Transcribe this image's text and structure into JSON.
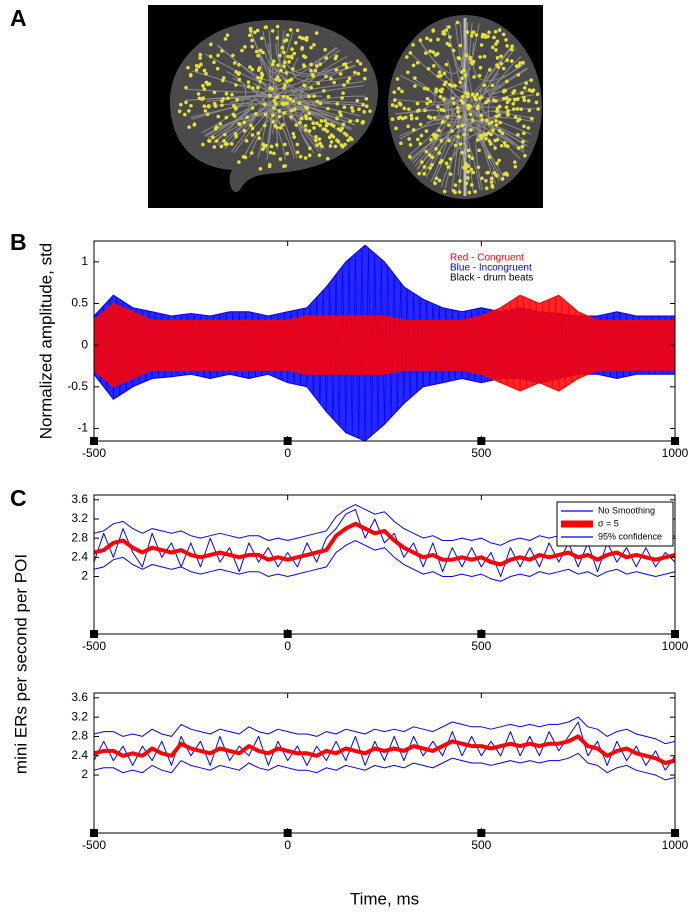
{
  "figure": {
    "panel_a": "A",
    "panel_b": "B",
    "panel_c": "C"
  },
  "chart_data": [
    {
      "type": "band",
      "ylabel": "Normalized amplitude, std",
      "xlim": [
        -500,
        1000
      ],
      "xticks": [
        -500,
        0,
        500,
        1000
      ],
      "ylim": [
        -1.15,
        1.25
      ],
      "yticks": [
        -1,
        -0.5,
        0,
        0.5,
        1
      ],
      "legend": "upper right",
      "x": [
        -500,
        -450,
        -400,
        -350,
        -300,
        -250,
        -200,
        -150,
        -100,
        -50,
        0,
        50,
        100,
        150,
        200,
        250,
        300,
        350,
        400,
        450,
        500,
        550,
        600,
        650,
        700,
        750,
        800,
        850,
        900,
        950,
        1000
      ],
      "series": [
        {
          "name": "Red - Congruent",
          "color": "#ff0000",
          "values": [
            0.3,
            0.5,
            0.4,
            0.3,
            0.3,
            0.3,
            0.3,
            0.3,
            0.3,
            0.3,
            0.3,
            0.35,
            0.35,
            0.35,
            0.35,
            0.35,
            0.3,
            0.3,
            0.3,
            0.3,
            0.35,
            0.45,
            0.6,
            0.5,
            0.6,
            0.4,
            0.3,
            0.3,
            0.3,
            0.3,
            0.3
          ],
          "lower": [
            -0.3,
            -0.5,
            -0.4,
            -0.3,
            -0.3,
            -0.3,
            -0.3,
            -0.3,
            -0.3,
            -0.3,
            -0.3,
            -0.35,
            -0.35,
            -0.35,
            -0.35,
            -0.35,
            -0.3,
            -0.3,
            -0.3,
            -0.3,
            -0.35,
            -0.45,
            -0.55,
            -0.45,
            -0.55,
            -0.4,
            -0.3,
            -0.3,
            -0.3,
            -0.3,
            -0.3
          ]
        },
        {
          "name": "Blue - Incongruent",
          "color": "#0000ff",
          "values": [
            0.35,
            0.6,
            0.45,
            0.4,
            0.35,
            0.38,
            0.35,
            0.4,
            0.4,
            0.35,
            0.4,
            0.45,
            0.7,
            1.0,
            1.2,
            1.0,
            0.7,
            0.55,
            0.45,
            0.4,
            0.45,
            0.4,
            0.45,
            0.4,
            0.38,
            0.35,
            0.35,
            0.4,
            0.35,
            0.35,
            0.35
          ],
          "lower": [
            -0.35,
            -0.65,
            -0.5,
            -0.4,
            -0.38,
            -0.35,
            -0.4,
            -0.35,
            -0.4,
            -0.35,
            -0.45,
            -0.5,
            -0.8,
            -1.05,
            -1.15,
            -0.95,
            -0.7,
            -0.5,
            -0.45,
            -0.4,
            -0.45,
            -0.4,
            -0.4,
            -0.45,
            -0.4,
            -0.35,
            -0.35,
            -0.4,
            -0.35,
            -0.35,
            -0.35
          ]
        }
      ],
      "drum_beats": {
        "name": "Black - drum beats",
        "color": "#000000",
        "x": [
          -500,
          0,
          500,
          1000
        ]
      }
    },
    {
      "type": "line",
      "ylabel": "mini ERs per second per POI",
      "xlim": [
        -500,
        1000
      ],
      "xticks": [
        -500,
        0,
        500,
        1000
      ],
      "ylim": [
        0.8,
        3.7
      ],
      "yticks": [
        2,
        2.4,
        2.8,
        3.2,
        3.6
      ],
      "legend": "upper right",
      "x": [
        -500,
        -475,
        -450,
        -425,
        -400,
        -375,
        -350,
        -325,
        -300,
        -275,
        -250,
        -225,
        -200,
        -175,
        -150,
        -125,
        -100,
        -75,
        -50,
        -25,
        0,
        25,
        50,
        75,
        100,
        125,
        150,
        175,
        200,
        225,
        250,
        275,
        300,
        325,
        350,
        375,
        400,
        425,
        450,
        475,
        500,
        525,
        550,
        575,
        600,
        625,
        650,
        675,
        700,
        725,
        750,
        775,
        800,
        825,
        850,
        875,
        900,
        925,
        950,
        975,
        1000
      ],
      "series": [
        {
          "name": "No Smoothing",
          "color": "#0000ff",
          "values": [
            2.3,
            2.9,
            2.4,
            3.0,
            2.5,
            2.2,
            2.9,
            2.4,
            2.7,
            2.2,
            2.7,
            2.2,
            2.8,
            2.3,
            2.6,
            2.1,
            2.7,
            2.3,
            2.6,
            2.2,
            2.5,
            2.2,
            2.7,
            2.3,
            2.8,
            3.0,
            3.3,
            3.4,
            2.8,
            3.2,
            2.7,
            2.9,
            2.4,
            2.7,
            2.2,
            2.7,
            2.1,
            2.6,
            2.2,
            2.6,
            2.2,
            2.5,
            2.0,
            2.6,
            2.2,
            2.6,
            2.2,
            2.7,
            2.3,
            2.7,
            2.2,
            2.7,
            2.1,
            2.7,
            2.3,
            2.6,
            2.2,
            2.6,
            2.2,
            2.5,
            2.3
          ]
        },
        {
          "name": "σ = 5",
          "color": "#ff0000",
          "values": [
            2.5,
            2.55,
            2.7,
            2.75,
            2.6,
            2.5,
            2.6,
            2.55,
            2.5,
            2.55,
            2.45,
            2.4,
            2.45,
            2.5,
            2.45,
            2.4,
            2.45,
            2.45,
            2.35,
            2.4,
            2.35,
            2.4,
            2.45,
            2.5,
            2.55,
            2.85,
            3.0,
            3.1,
            3.0,
            2.9,
            2.95,
            2.75,
            2.6,
            2.5,
            2.4,
            2.45,
            2.35,
            2.35,
            2.4,
            2.35,
            2.4,
            2.3,
            2.25,
            2.35,
            2.4,
            2.35,
            2.45,
            2.4,
            2.45,
            2.5,
            2.4,
            2.45,
            2.35,
            2.45,
            2.5,
            2.4,
            2.45,
            2.4,
            2.35,
            2.4,
            2.45
          ]
        },
        {
          "name": "95% confidence",
          "color": "#0000ff",
          "values": [
            2.9,
            2.95,
            3.1,
            3.15,
            3.0,
            2.9,
            3.0,
            2.95,
            2.9,
            2.95,
            2.85,
            2.8,
            2.85,
            2.9,
            2.85,
            2.8,
            2.85,
            2.85,
            2.75,
            2.8,
            2.75,
            2.8,
            2.85,
            2.9,
            2.95,
            3.25,
            3.4,
            3.5,
            3.4,
            3.3,
            3.35,
            3.15,
            3.0,
            2.9,
            2.8,
            2.85,
            2.75,
            2.75,
            2.8,
            2.75,
            2.8,
            2.7,
            2.65,
            2.75,
            2.8,
            2.75,
            2.85,
            2.8,
            2.85,
            2.9,
            2.8,
            2.85,
            2.75,
            2.85,
            2.9,
            2.8,
            2.85,
            2.8,
            2.75,
            2.8,
            2.85
          ],
          "lower": [
            2.15,
            2.2,
            2.35,
            2.4,
            2.25,
            2.15,
            2.25,
            2.2,
            2.15,
            2.2,
            2.1,
            2.05,
            2.1,
            2.15,
            2.1,
            2.05,
            2.1,
            2.1,
            2.0,
            2.05,
            2.0,
            2.05,
            2.1,
            2.15,
            2.2,
            2.5,
            2.65,
            2.75,
            2.65,
            2.55,
            2.6,
            2.4,
            2.25,
            2.15,
            2.05,
            2.1,
            2.0,
            2.0,
            2.05,
            2.0,
            2.05,
            1.95,
            1.9,
            2.0,
            2.05,
            2.0,
            2.1,
            2.05,
            2.1,
            2.15,
            2.05,
            2.1,
            2.0,
            2.1,
            2.15,
            2.05,
            2.1,
            2.05,
            2.0,
            2.05,
            2.1
          ]
        }
      ],
      "drum_beats": {
        "color": "#000000",
        "x": [
          -500,
          0,
          500,
          1000
        ]
      }
    },
    {
      "type": "line",
      "xlabel": "Time, ms",
      "xlim": [
        -500,
        1000
      ],
      "xticks": [
        -500,
        0,
        500,
        1000
      ],
      "ylim": [
        0.8,
        3.7
      ],
      "yticks": [
        2,
        2.4,
        2.8,
        3.2,
        3.6
      ],
      "x": [
        -500,
        -475,
        -450,
        -425,
        -400,
        -375,
        -350,
        -325,
        -300,
        -275,
        -250,
        -225,
        -200,
        -175,
        -150,
        -125,
        -100,
        -75,
        -50,
        -25,
        0,
        25,
        50,
        75,
        100,
        125,
        150,
        175,
        200,
        225,
        250,
        275,
        300,
        325,
        350,
        375,
        400,
        425,
        450,
        475,
        500,
        525,
        550,
        575,
        600,
        625,
        650,
        675,
        700,
        725,
        750,
        775,
        800,
        825,
        850,
        875,
        900,
        925,
        950,
        975,
        1000
      ],
      "series": [
        {
          "color": "#0000ff",
          "values": [
            2.3,
            2.7,
            2.3,
            2.6,
            2.2,
            2.6,
            2.3,
            2.7,
            2.2,
            2.8,
            2.4,
            2.7,
            2.2,
            2.8,
            2.3,
            2.6,
            2.4,
            2.8,
            2.2,
            2.7,
            2.3,
            2.6,
            2.2,
            2.6,
            2.3,
            2.7,
            2.3,
            2.8,
            2.2,
            2.7,
            2.3,
            2.8,
            2.3,
            2.8,
            2.4,
            2.7,
            2.4,
            2.9,
            2.4,
            2.8,
            2.4,
            2.7,
            2.4,
            2.9,
            2.4,
            2.8,
            2.4,
            2.9,
            2.5,
            2.8,
            3.1,
            2.4,
            2.7,
            2.2,
            2.7,
            2.3,
            2.6,
            2.2,
            2.5,
            2.1,
            2.4
          ]
        },
        {
          "color": "#ff0000",
          "values": [
            2.45,
            2.5,
            2.5,
            2.4,
            2.45,
            2.4,
            2.55,
            2.45,
            2.4,
            2.65,
            2.55,
            2.5,
            2.45,
            2.55,
            2.5,
            2.45,
            2.6,
            2.5,
            2.45,
            2.55,
            2.5,
            2.45,
            2.45,
            2.4,
            2.5,
            2.45,
            2.55,
            2.5,
            2.45,
            2.55,
            2.5,
            2.55,
            2.5,
            2.6,
            2.55,
            2.5,
            2.6,
            2.7,
            2.65,
            2.6,
            2.6,
            2.55,
            2.6,
            2.65,
            2.6,
            2.65,
            2.6,
            2.65,
            2.65,
            2.7,
            2.8,
            2.6,
            2.55,
            2.4,
            2.5,
            2.55,
            2.45,
            2.4,
            2.35,
            2.25,
            2.3
          ]
        },
        {
          "color": "#0000ff",
          "values": [
            2.85,
            2.9,
            2.9,
            2.8,
            2.85,
            2.8,
            2.95,
            2.85,
            2.8,
            3.05,
            2.95,
            2.9,
            2.85,
            2.95,
            2.9,
            2.85,
            3.0,
            2.9,
            2.85,
            2.95,
            2.9,
            2.85,
            2.85,
            2.8,
            2.9,
            2.85,
            2.95,
            2.9,
            2.85,
            2.95,
            2.9,
            2.95,
            2.9,
            3.0,
            2.95,
            2.9,
            3.0,
            3.1,
            3.05,
            3.0,
            3.0,
            2.95,
            3.0,
            3.05,
            3.0,
            3.05,
            3.0,
            3.05,
            3.05,
            3.1,
            3.2,
            3.0,
            2.95,
            2.8,
            2.9,
            2.95,
            2.85,
            2.8,
            2.75,
            2.65,
            2.7
          ],
          "lower": [
            2.1,
            2.15,
            2.15,
            2.05,
            2.1,
            2.05,
            2.2,
            2.1,
            2.05,
            2.3,
            2.2,
            2.15,
            2.1,
            2.2,
            2.15,
            2.1,
            2.25,
            2.15,
            2.1,
            2.2,
            2.15,
            2.1,
            2.1,
            2.05,
            2.15,
            2.1,
            2.2,
            2.15,
            2.1,
            2.2,
            2.15,
            2.2,
            2.15,
            2.25,
            2.2,
            2.15,
            2.25,
            2.35,
            2.3,
            2.25,
            2.25,
            2.2,
            2.25,
            2.3,
            2.25,
            2.3,
            2.25,
            2.3,
            2.3,
            2.35,
            2.45,
            2.25,
            2.2,
            2.05,
            2.15,
            2.2,
            2.1,
            2.05,
            2.0,
            1.9,
            1.95
          ]
        }
      ],
      "drum_beats": {
        "color": "#000000",
        "x": [
          -500,
          0,
          500,
          1000
        ]
      }
    }
  ]
}
